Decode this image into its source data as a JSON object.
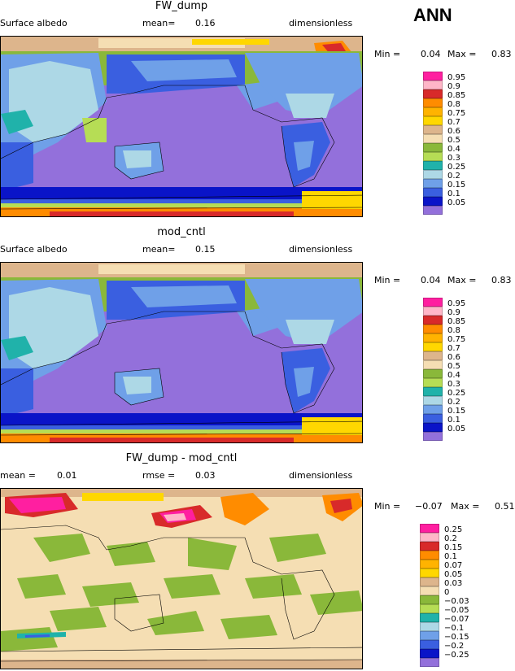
{
  "season": "ANN",
  "panels": [
    {
      "title": "FW_dump",
      "left_label": "Surface albedo",
      "mid_label": "mean=",
      "mid_value": "0.16",
      "right_label": "dimensionless",
      "min_label": "Min =",
      "min_value": "0.04",
      "max_label": "Max =",
      "max_value": "0.83",
      "legend": [
        {
          "label": "0.95",
          "color": "#ff1fa0"
        },
        {
          "label": "0.9",
          "color": "#ffb6c8"
        },
        {
          "label": "0.85",
          "color": "#d82a2a"
        },
        {
          "label": "0.8",
          "color": "#ff8c00"
        },
        {
          "label": "0.75",
          "color": "#ffb300"
        },
        {
          "label": "0.7",
          "color": "#ffd700"
        },
        {
          "label": "0.6",
          "color": "#ddb58c"
        },
        {
          "label": "0.5",
          "color": "#f5deb3"
        },
        {
          "label": "0.4",
          "color": "#8ab83a"
        },
        {
          "label": "0.3",
          "color": "#b6dd55"
        },
        {
          "label": "0.25",
          "color": "#20b2aa"
        },
        {
          "label": "0.2",
          "color": "#add8e6"
        },
        {
          "label": "0.15",
          "color": "#6fa0e8"
        },
        {
          "label": "0.1",
          "color": "#3a5fe0"
        },
        {
          "label": "0.05",
          "color": "#0a14c8"
        },
        {
          "label": "",
          "color": "#9370db"
        }
      ]
    },
    {
      "title": "mod_cntl",
      "left_label": "Surface albedo",
      "mid_label": "mean=",
      "mid_value": "0.15",
      "right_label": "dimensionless",
      "min_label": "Min =",
      "min_value": "0.04",
      "max_label": "Max =",
      "max_value": "0.83",
      "legend": [
        {
          "label": "0.95",
          "color": "#ff1fa0"
        },
        {
          "label": "0.9",
          "color": "#ffb6c8"
        },
        {
          "label": "0.85",
          "color": "#d82a2a"
        },
        {
          "label": "0.8",
          "color": "#ff8c00"
        },
        {
          "label": "0.75",
          "color": "#ffb300"
        },
        {
          "label": "0.7",
          "color": "#ffd700"
        },
        {
          "label": "0.6",
          "color": "#ddb58c"
        },
        {
          "label": "0.5",
          "color": "#f5deb3"
        },
        {
          "label": "0.4",
          "color": "#8ab83a"
        },
        {
          "label": "0.3",
          "color": "#b6dd55"
        },
        {
          "label": "0.25",
          "color": "#20b2aa"
        },
        {
          "label": "0.2",
          "color": "#add8e6"
        },
        {
          "label": "0.15",
          "color": "#6fa0e8"
        },
        {
          "label": "0.1",
          "color": "#3a5fe0"
        },
        {
          "label": "0.05",
          "color": "#0a14c8"
        },
        {
          "label": "",
          "color": "#9370db"
        }
      ]
    },
    {
      "title": "FW_dump - mod_cntl",
      "left_label": "mean =",
      "left_value": "0.01",
      "mid_label": "rmse =",
      "mid_value": "0.03",
      "right_label": "dimensionless",
      "min_label": "Min =",
      "min_value": "−0.07",
      "max_label": "Max =",
      "max_value": "0.51",
      "legend": [
        {
          "label": "0.25",
          "color": "#ff1fa0"
        },
        {
          "label": "0.2",
          "color": "#ffb6c8"
        },
        {
          "label": "0.15",
          "color": "#d82a2a"
        },
        {
          "label": "0.1",
          "color": "#ff8c00"
        },
        {
          "label": "0.07",
          "color": "#ffb300"
        },
        {
          "label": "0.05",
          "color": "#ffd700"
        },
        {
          "label": "0.03",
          "color": "#ddb58c"
        },
        {
          "label": "0",
          "color": "#f5deb3"
        },
        {
          "label": "−0.03",
          "color": "#8ab83a"
        },
        {
          "label": "−0.05",
          "color": "#b6dd55"
        },
        {
          "label": "−0.07",
          "color": "#20b2aa"
        },
        {
          "label": "−0.1",
          "color": "#add8e6"
        },
        {
          "label": "−0.15",
          "color": "#6fa0e8"
        },
        {
          "label": "−0.2",
          "color": "#3a5fe0"
        },
        {
          "label": "−0.25",
          "color": "#0a14c8"
        },
        {
          "label": "",
          "color": "#9370db"
        }
      ]
    }
  ]
}
